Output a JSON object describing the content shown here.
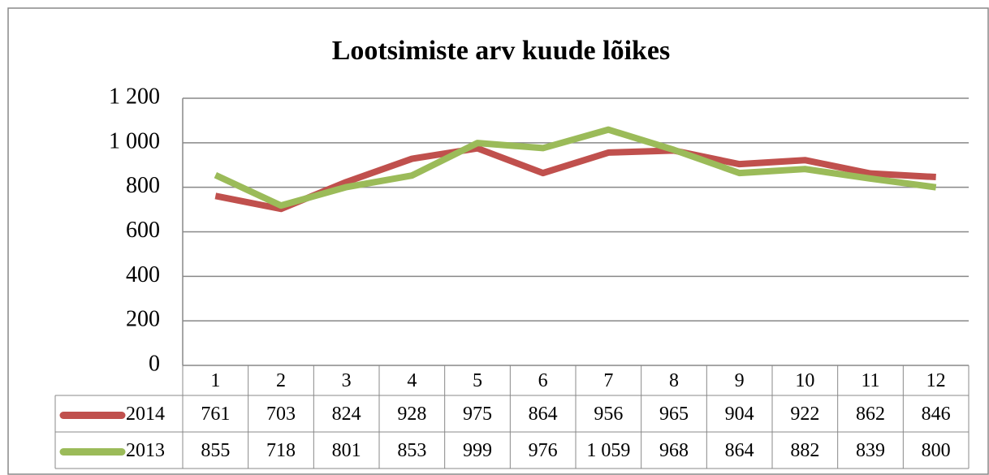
{
  "chart_data": {
    "type": "line",
    "title": "Lootsimiste arv kuude lõikes",
    "categories": [
      "1",
      "2",
      "3",
      "4",
      "5",
      "6",
      "7",
      "8",
      "9",
      "10",
      "11",
      "12"
    ],
    "series": [
      {
        "name": "2014",
        "color": "#c0504d",
        "values": [
          761,
          703,
          824,
          928,
          975,
          864,
          956,
          965,
          904,
          922,
          862,
          846
        ]
      },
      {
        "name": "2013",
        "color": "#9bbb59",
        "values": [
          855,
          718,
          801,
          853,
          999,
          976,
          1059,
          968,
          864,
          882,
          839,
          800
        ],
        "value_labels": [
          "855",
          "718",
          "801",
          "853",
          "999",
          "976",
          "1 059",
          "968",
          "864",
          "882",
          "839",
          "800"
        ]
      }
    ],
    "ylim": [
      0,
      1200
    ],
    "yticks": [
      0,
      200,
      400,
      600,
      800,
      {
        "value": 1000,
        "label": "1 000"
      },
      {
        "value": 1200,
        "label": "1 200"
      }
    ],
    "grid": true
  }
}
